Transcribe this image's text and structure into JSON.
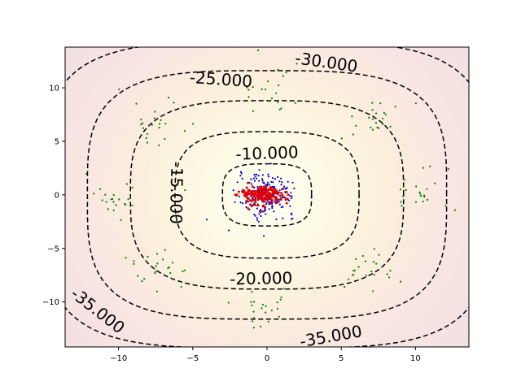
{
  "chart_data": {
    "type": "contour-scatter",
    "title": "",
    "xlabel": "",
    "ylabel": "",
    "xlim": [
      -13.6,
      13.6
    ],
    "ylim": [
      -14.2,
      13.8
    ],
    "x_ticks": [
      -10,
      -5,
      0,
      5,
      10
    ],
    "y_ticks": [
      -10,
      -5,
      0,
      5,
      10
    ],
    "x_tick_labels": [
      "−10",
      "−5",
      "0",
      "5",
      "10"
    ],
    "y_tick_labels": [
      "−10",
      "−5",
      "0",
      "5",
      "10"
    ],
    "grid": false,
    "legend": "none",
    "background_colormap": "pink",
    "contour_levels": [
      -10,
      -15,
      -20,
      -25,
      -30,
      -35
    ],
    "contour_line_style": "dashed",
    "contour_line_color": "#000000",
    "contour_labels": [
      {
        "text": "-10.000",
        "x": 0,
        "y": 3.9,
        "rotation": -2
      },
      {
        "text": "-15.000",
        "x": -6.1,
        "y": 0.2,
        "rotation": 91
      },
      {
        "text": "-20.000",
        "x": -0.4,
        "y": -7.8,
        "rotation": -1
      },
      {
        "text": "-25.000",
        "x": -3.1,
        "y": 10.8,
        "rotation": 4
      },
      {
        "text": "-30.000",
        "x": 4.0,
        "y": 12.4,
        "rotation": 8
      },
      {
        "text": "-35.000",
        "x": -11.4,
        "y": -10.8,
        "rotation": 38
      },
      {
        "text": "-35.000",
        "x": 4.3,
        "y": -13.2,
        "rotation": -10
      }
    ],
    "series": [
      {
        "color": "#008000",
        "marker": "dot",
        "clusters": [
          {
            "x": -10.0,
            "y": 0.0
          },
          {
            "x": -7.6,
            "y": 6.5
          },
          {
            "x": 0.0,
            "y": 9.7
          },
          {
            "x": 7.2,
            "y": 7.0
          },
          {
            "x": 10.0,
            "y": 0.3
          },
          {
            "x": 6.9,
            "y": -7.1
          },
          {
            "x": 0.0,
            "y": -10.5
          },
          {
            "x": -7.2,
            "y": -7.2
          }
        ]
      },
      {
        "color": "#0000cc",
        "marker": "dot",
        "clusters": [
          {
            "x": 0.0,
            "y": 0.0
          }
        ]
      },
      {
        "color": "#e60000",
        "marker": "dot",
        "clusters": [
          {
            "x": -0.3,
            "y": 0.0
          }
        ]
      }
    ]
  }
}
